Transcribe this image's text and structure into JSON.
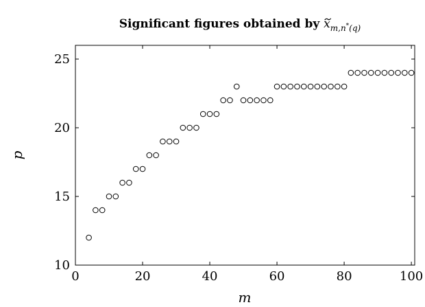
{
  "chart_data": {
    "type": "scatter",
    "title": "Significant figures obtained by ",
    "title_math": {
      "base": "x",
      "accent": "~",
      "subscript": "m,n",
      "subscript_sup": "*",
      "subscript_tail": "(q)"
    },
    "xlabel": "m",
    "ylabel": "p",
    "xlim": [
      0,
      101
    ],
    "ylim": [
      10,
      26
    ],
    "xticks": [
      0,
      20,
      40,
      60,
      80,
      100
    ],
    "yticks": [
      10,
      15,
      20,
      25
    ],
    "marker": "open-circle",
    "grid": false,
    "x": [
      4,
      6,
      8,
      10,
      12,
      14,
      16,
      18,
      20,
      22,
      24,
      26,
      28,
      30,
      32,
      34,
      36,
      38,
      40,
      42,
      44,
      46,
      48,
      50,
      52,
      54,
      56,
      58,
      60,
      62,
      64,
      66,
      68,
      70,
      72,
      74,
      76,
      78,
      80,
      82,
      84,
      86,
      88,
      90,
      92,
      94,
      96,
      98,
      100
    ],
    "y": [
      12,
      14,
      14,
      15,
      15,
      16,
      16,
      17,
      17,
      18,
      18,
      19,
      19,
      19,
      20,
      20,
      20,
      21,
      21,
      21,
      22,
      22,
      23,
      22,
      22,
      22,
      22,
      22,
      23,
      23,
      23,
      23,
      23,
      23,
      23,
      23,
      23,
      23,
      23,
      24,
      24,
      24,
      24,
      24,
      24,
      24,
      24,
      24,
      24
    ]
  }
}
